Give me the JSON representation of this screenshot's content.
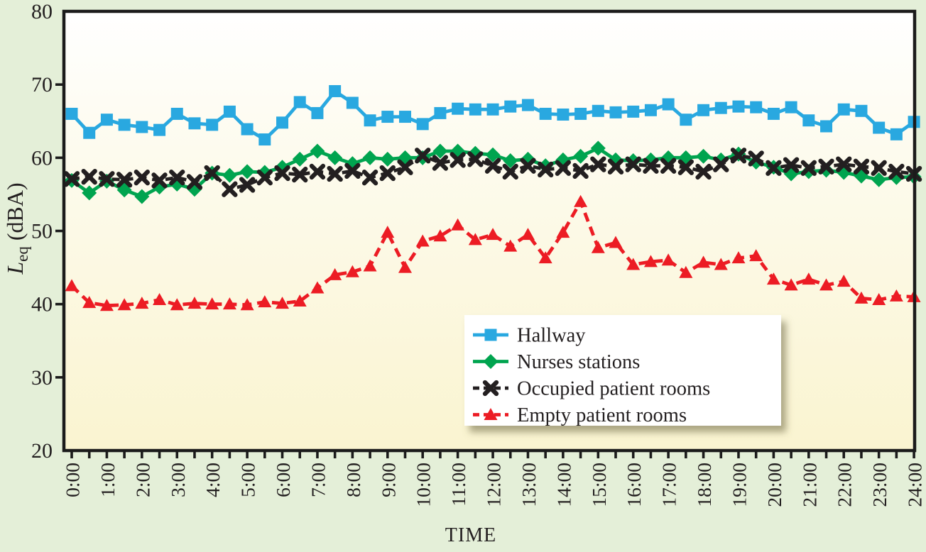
{
  "figure": {
    "x_axis_label": "TIME",
    "y_axis_label": {
      "main": "L",
      "sub": "eq",
      "rest": "(dBA)"
    }
  },
  "colors": {
    "outer_background": "#e4efd8",
    "plot_top": "#ffffff",
    "plot_mid": "#fdfbee",
    "plot_bottom": "#faf4d0",
    "axis": "#1b1b1b",
    "text": "#231f20",
    "hallway_blue": "#29a8e0",
    "nurses_green": "#00a44f",
    "occupied_black": "#231f20",
    "empty_red": "#ec1c24",
    "legend_fill": "#ffffff",
    "legend_shadow": "rgba(105,100,60,0.55)"
  },
  "chart_data": {
    "type": "line",
    "title": "",
    "xlabel": "TIME",
    "ylabel": "Leq (dBA)",
    "x_unit": "hours",
    "xlim": [
      0,
      24
    ],
    "ylim": [
      20,
      80
    ],
    "yticks": [
      20,
      30,
      40,
      50,
      60,
      70,
      80
    ],
    "x_tick_labels": [
      "0:00",
      "1:00",
      "2:00",
      "3:00",
      "4:00",
      "5:00",
      "6:00",
      "7:00",
      "8:00",
      "9:00",
      "10:00",
      "11:00",
      "12:00",
      "13:00",
      "14:00",
      "15:00",
      "16:00",
      "17:00",
      "18:00",
      "19:00",
      "20:00",
      "21:00",
      "22:00",
      "23:00",
      "24:00"
    ],
    "x_minor_tick_interval_hours": 0.5,
    "grid": false,
    "legend_position": "inside-lower-right",
    "x": [
      0,
      0.5,
      1,
      1.5,
      2,
      2.5,
      3,
      3.5,
      4,
      4.5,
      5,
      5.5,
      6,
      6.5,
      7,
      7.5,
      8,
      8.5,
      9,
      9.5,
      10,
      10.5,
      11,
      11.5,
      12,
      12.5,
      13,
      13.5,
      14,
      14.5,
      15,
      15.5,
      16,
      16.5,
      17,
      17.5,
      18,
      18.5,
      19,
      19.5,
      20,
      20.5,
      21,
      21.5,
      22,
      22.5,
      23,
      23.5,
      24
    ],
    "series": [
      {
        "name": "Hallway",
        "color": "#29a8e0",
        "line_style": "solid",
        "marker": "square",
        "values": [
          66,
          63.4,
          65.2,
          64.5,
          64.2,
          63.8,
          66,
          64.7,
          64.5,
          66.3,
          63.9,
          62.5,
          64.8,
          67.6,
          66.1,
          69.1,
          67.5,
          65.1,
          65.6,
          65.6,
          64.6,
          66.1,
          66.7,
          66.6,
          66.6,
          67,
          67.2,
          66,
          65.9,
          66,
          66.4,
          66.2,
          66.3,
          66.5,
          67.3,
          65.2,
          66.5,
          66.8,
          67,
          66.9,
          66,
          66.9,
          65.1,
          64.3,
          66.6,
          66.4,
          64.1,
          63.2,
          64.9
        ]
      },
      {
        "name": "Nurses stations",
        "color": "#00a44f",
        "line_style": "solid",
        "marker": "diamond",
        "values": [
          56.9,
          55.2,
          56.8,
          55.6,
          54.7,
          56,
          56.4,
          55.7,
          57.9,
          57.6,
          58.1,
          58,
          58.7,
          59.8,
          60.9,
          60,
          59.2,
          60,
          59.8,
          60,
          60,
          60.9,
          60.9,
          60.6,
          60.4,
          59.6,
          59.8,
          58.9,
          59.7,
          60.2,
          61.3,
          59.7,
          59.6,
          59.7,
          60,
          60,
          60.2,
          59.7,
          60.5,
          59.4,
          58.7,
          57.8,
          58.1,
          58.3,
          58,
          57.5,
          57,
          57.3,
          57.4
        ]
      },
      {
        "name": "Occupied patient rooms",
        "color": "#231f20",
        "line_style": "dashed",
        "marker": "x",
        "values": [
          57.1,
          57.4,
          57.1,
          57,
          57.3,
          56.9,
          57.3,
          56.7,
          57.9,
          55.7,
          56.3,
          57.3,
          57.9,
          57.7,
          58.1,
          57.8,
          58.2,
          57.3,
          57.9,
          58.7,
          60.3,
          59.3,
          59.7,
          59.8,
          58.9,
          58.1,
          58.9,
          58.4,
          58.6,
          58.2,
          59.1,
          58.8,
          59.1,
          58.9,
          58.9,
          58.7,
          58.1,
          59.1,
          60.3,
          59.9,
          58.6,
          59,
          58.6,
          58.8,
          59.1,
          58.8,
          58.6,
          58.1,
          57.8
        ]
      },
      {
        "name": "Empty patient rooms",
        "color": "#ec1c24",
        "line_style": "dashed",
        "marker": "triangle",
        "values": [
          42.5,
          40.2,
          39.8,
          39.9,
          40.1,
          40.6,
          39.9,
          40.1,
          40,
          40,
          39.9,
          40.3,
          40.1,
          40.4,
          42.2,
          44,
          44.4,
          45.2,
          49.8,
          45,
          48.6,
          49.3,
          50.8,
          48.8,
          49.5,
          47.9,
          49.5,
          46.3,
          49.8,
          54,
          47.7,
          48.4,
          45.4,
          45.8,
          46,
          44.3,
          45.7,
          45.4,
          46.3,
          46.6,
          43.4,
          42.6,
          43.4,
          42.6,
          43.1,
          40.8,
          40.6,
          41.1,
          41
        ]
      }
    ]
  }
}
